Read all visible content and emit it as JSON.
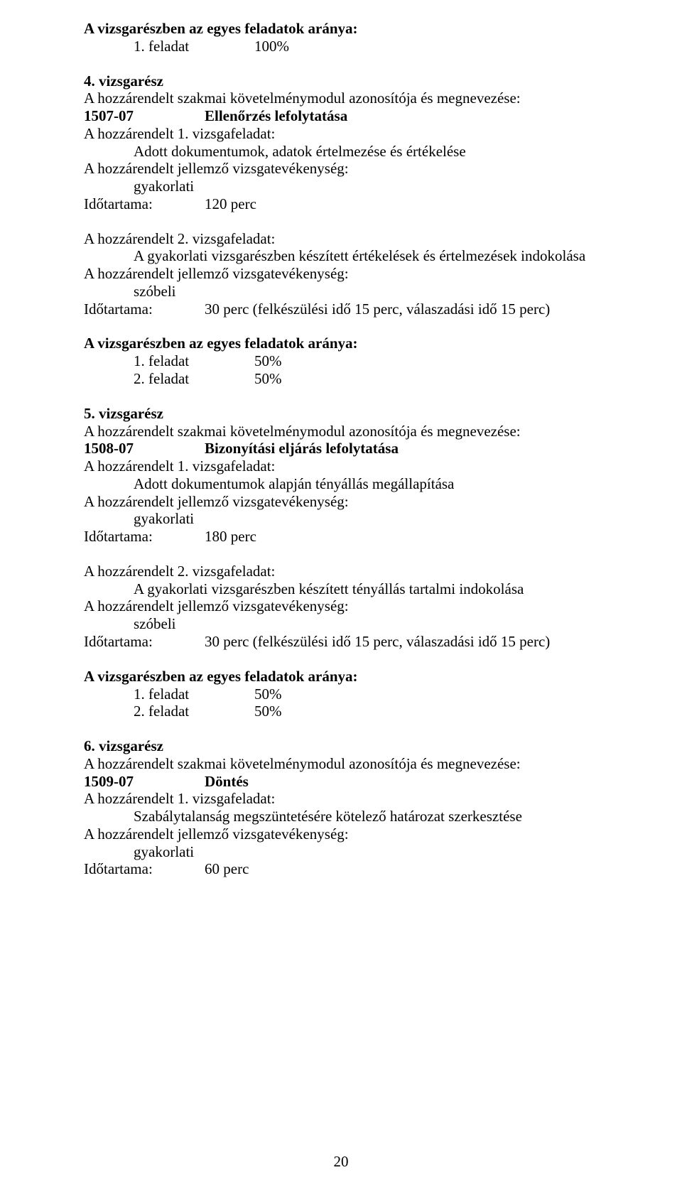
{
  "colors": {
    "text": "#000000",
    "background": "#ffffff"
  },
  "typography": {
    "family": "Times New Roman",
    "base_size_pt": 16,
    "bold_weight": 700
  },
  "page_number": "20",
  "s4": {
    "arany_heading": "A vizsgarészben az egyes feladatok aránya:",
    "f1": "1. feladat",
    "f1_pct": "100%",
    "title": "4. vizsgarész",
    "mod_line": "A hozzárendelt szakmai követelménymodul azonosítója és megnevezése:",
    "mod_code": "1507-07",
    "mod_name": "Ellenőrzés lefolytatása",
    "t1_label": "A hozzárendelt 1. vizsgafeladat:",
    "t1_desc": "Adott dokumentumok, adatok értelmezése és értékelése",
    "jel": "A hozzárendelt jellemző vizsgatevékenység:",
    "jel_v1": "gyakorlati",
    "ido_label": "Időtartama:",
    "ido_v1": "120 perc",
    "t2_label": "A hozzárendelt 2. vizsgafeladat:",
    "t2_desc": "A gyakorlati vizsgarészben készített értékelések és értelmezések indokolása",
    "jel_v2": "szóbeli",
    "ido_v2": "30 perc (felkészülési idő 15 perc, válaszadási idő 15 perc)",
    "arany2_heading": "A vizsgarészben az egyes feladatok aránya:",
    "af1": "1. feladat",
    "af1_pct": "50%",
    "af2": "2. feladat",
    "af2_pct": "50%"
  },
  "s5": {
    "title": "5. vizsgarész",
    "mod_line": "A hozzárendelt szakmai követelménymodul azonosítója és megnevezése:",
    "mod_code": "1508-07",
    "mod_name": "Bizonyítási eljárás lefolytatása",
    "t1_label": "A hozzárendelt 1. vizsgafeladat:",
    "t1_desc": "Adott dokumentumok alapján tényállás megállapítása",
    "jel": "A hozzárendelt jellemző vizsgatevékenység:",
    "jel_v1": "gyakorlati",
    "ido_label": "Időtartama:",
    "ido_v1": "180 perc",
    "t2_label": "A hozzárendelt 2. vizsgafeladat:",
    "t2_desc": "A gyakorlati vizsgarészben készített tényállás tartalmi indokolása",
    "jel_v2": "szóbeli",
    "ido_v2": "30 perc (felkészülési idő 15 perc, válaszadási idő 15 perc)",
    "arany_heading": "A vizsgarészben az egyes feladatok aránya:",
    "af1": "1. feladat",
    "af1_pct": "50%",
    "af2": "2. feladat",
    "af2_pct": "50%"
  },
  "s6": {
    "title": "6. vizsgarész",
    "mod_line": "A hozzárendelt szakmai követelménymodul azonosítója és megnevezése:",
    "mod_code": "1509-07",
    "mod_name": "Döntés",
    "t1_label": "A hozzárendelt 1. vizsgafeladat:",
    "t1_desc": "Szabálytalanság megszüntetésére kötelező határozat szerkesztése",
    "jel": "A hozzárendelt jellemző vizsgatevékenység:",
    "jel_v1": "gyakorlati",
    "ido_label": "Időtartama:",
    "ido_v1": "60 perc"
  }
}
